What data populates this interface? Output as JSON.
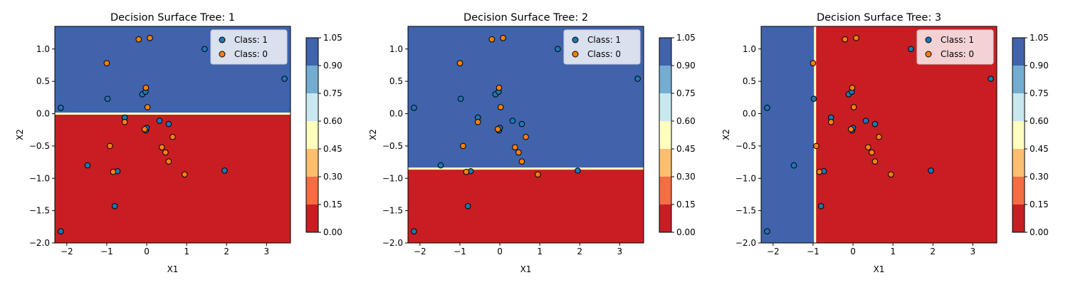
{
  "colors": {
    "class_1": "#1f77b4",
    "class_0": "#ff7f0e",
    "marker_edge": "#000000",
    "region_class_1": "#4063ab",
    "region_class_0": "#c81e23",
    "boundary": "#ffffbf"
  },
  "colorbar": {
    "levels": [
      0.0,
      0.15,
      0.3,
      0.45,
      0.6,
      0.75,
      0.9,
      1.05
    ],
    "tick_labels": [
      "0.00",
      "0.15",
      "0.30",
      "0.45",
      "0.60",
      "0.75",
      "0.90",
      "1.05"
    ],
    "colors": [
      "#c81e23",
      "#f46d43",
      "#fdbf6f",
      "#ffffbf",
      "#c9e7ef",
      "#74add1",
      "#4063ab"
    ]
  },
  "chart_data": [
    {
      "type": "scatter",
      "title": "Decision Surface Tree: 1",
      "xlabel": "X1",
      "ylabel": "X2",
      "xlim": [
        -2.3,
        3.6
      ],
      "ylim": [
        -2.0,
        1.35
      ],
      "xticks": [
        -2,
        -1,
        0,
        1,
        2,
        3
      ],
      "xtick_labels": [
        "−2",
        "−1",
        "0",
        "1",
        "2",
        "3"
      ],
      "yticks": [
        -2.0,
        -1.5,
        -1.0,
        -0.5,
        0.0,
        0.5,
        1.0
      ],
      "ytick_labels": [
        "−2.0",
        "−1.5",
        "−1.0",
        "−0.5",
        "0.0",
        "0.5",
        "1.0"
      ],
      "split": {
        "axis": "x2",
        "threshold": 0.0,
        "lower_class": 0,
        "upper_class": 1
      },
      "legend": "top-right",
      "series": [
        {
          "name": "Class: 1",
          "class": 1,
          "points": [
            [
              -2.15,
              0.09
            ],
            [
              -1.48,
              -0.8
            ],
            [
              -0.98,
              0.23
            ],
            [
              -0.8,
              -1.43
            ],
            [
              -0.73,
              -0.89
            ],
            [
              -0.55,
              -0.06
            ],
            [
              -0.11,
              0.3
            ],
            [
              -0.03,
              0.34
            ],
            [
              -0.02,
              -0.26
            ],
            [
              0.0,
              -0.22
            ],
            [
              0.32,
              -0.11
            ],
            [
              0.55,
              -0.16
            ],
            [
              1.45,
              1.0
            ],
            [
              1.95,
              -0.88
            ],
            [
              3.45,
              0.54
            ],
            [
              -2.15,
              -1.82
            ]
          ]
        },
        {
          "name": "Class: 0",
          "class": 0,
          "points": [
            [
              -1.0,
              0.78
            ],
            [
              -0.2,
              1.15
            ],
            [
              0.08,
              1.17
            ],
            [
              -0.92,
              -0.5
            ],
            [
              -0.84,
              -0.9
            ],
            [
              -0.55,
              -0.13
            ],
            [
              -0.05,
              -0.24
            ],
            [
              -0.02,
              0.4
            ],
            [
              0.02,
              0.1
            ],
            [
              0.38,
              -0.52
            ],
            [
              0.47,
              -0.6
            ],
            [
              0.55,
              -0.74
            ],
            [
              0.65,
              -0.36
            ],
            [
              0.95,
              -0.94
            ]
          ]
        }
      ]
    },
    {
      "type": "scatter",
      "title": "Decision Surface Tree: 2",
      "xlabel": "X1",
      "ylabel": "X2",
      "xlim": [
        -2.3,
        3.6
      ],
      "ylim": [
        -2.0,
        1.35
      ],
      "xticks": [
        -2,
        -1,
        0,
        1,
        2,
        3
      ],
      "xtick_labels": [
        "−2",
        "−1",
        "0",
        "1",
        "2",
        "3"
      ],
      "yticks": [
        -2.0,
        -1.5,
        -1.0,
        -0.5,
        0.0,
        0.5,
        1.0
      ],
      "ytick_labels": [
        "−2.0",
        "−1.5",
        "−1.0",
        "−0.5",
        "0.0",
        "0.5",
        "1.0"
      ],
      "split": {
        "axis": "x2",
        "threshold": -0.85,
        "lower_class": 0,
        "upper_class": 1
      },
      "legend": "top-right",
      "series": [
        {
          "name": "Class: 1",
          "class": 1,
          "points": [
            [
              -2.15,
              0.09
            ],
            [
              -1.48,
              -0.8
            ],
            [
              -0.98,
              0.23
            ],
            [
              -0.8,
              -1.43
            ],
            [
              -0.73,
              -0.89
            ],
            [
              -0.55,
              -0.06
            ],
            [
              -0.11,
              0.3
            ],
            [
              -0.03,
              0.34
            ],
            [
              -0.02,
              -0.26
            ],
            [
              0.0,
              -0.22
            ],
            [
              0.32,
              -0.11
            ],
            [
              0.55,
              -0.16
            ],
            [
              1.45,
              1.0
            ],
            [
              1.95,
              -0.88
            ],
            [
              3.45,
              0.54
            ],
            [
              -2.15,
              -1.82
            ]
          ]
        },
        {
          "name": "Class: 0",
          "class": 0,
          "points": [
            [
              -1.0,
              0.78
            ],
            [
              -0.2,
              1.15
            ],
            [
              0.08,
              1.17
            ],
            [
              -0.92,
              -0.5
            ],
            [
              -0.84,
              -0.9
            ],
            [
              -0.55,
              -0.13
            ],
            [
              -0.05,
              -0.24
            ],
            [
              -0.02,
              0.4
            ],
            [
              0.02,
              0.1
            ],
            [
              0.38,
              -0.52
            ],
            [
              0.47,
              -0.6
            ],
            [
              0.55,
              -0.74
            ],
            [
              0.65,
              -0.36
            ],
            [
              0.95,
              -0.94
            ]
          ]
        }
      ]
    },
    {
      "type": "scatter",
      "title": "Decision Surface Tree: 3",
      "xlabel": "X1",
      "ylabel": "X2",
      "xlim": [
        -2.3,
        3.6
      ],
      "ylim": [
        -2.0,
        1.35
      ],
      "xticks": [
        -2,
        -1,
        0,
        1,
        2,
        3
      ],
      "xtick_labels": [
        "−2",
        "−1",
        "0",
        "1",
        "2",
        "3"
      ],
      "yticks": [
        -2.0,
        -1.5,
        -1.0,
        -0.5,
        0.0,
        0.5,
        1.0
      ],
      "ytick_labels": [
        "−2.0",
        "−1.5",
        "−1.0",
        "−0.5",
        "0.0",
        "0.5",
        "1.0"
      ],
      "split": {
        "axis": "x1",
        "threshold": -0.95,
        "lower_class": 1,
        "upper_class": 0
      },
      "legend": "top-right",
      "series": [
        {
          "name": "Class: 1",
          "class": 1,
          "points": [
            [
              -2.15,
              0.09
            ],
            [
              -1.48,
              -0.8
            ],
            [
              -0.98,
              0.23
            ],
            [
              -0.8,
              -1.43
            ],
            [
              -0.73,
              -0.89
            ],
            [
              -0.55,
              -0.06
            ],
            [
              -0.11,
              0.3
            ],
            [
              -0.03,
              0.34
            ],
            [
              -0.02,
              -0.26
            ],
            [
              0.0,
              -0.22
            ],
            [
              0.32,
              -0.11
            ],
            [
              0.55,
              -0.16
            ],
            [
              1.45,
              1.0
            ],
            [
              1.95,
              -0.88
            ],
            [
              3.45,
              0.54
            ],
            [
              -2.15,
              -1.82
            ]
          ]
        },
        {
          "name": "Class: 0",
          "class": 0,
          "points": [
            [
              -1.0,
              0.78
            ],
            [
              -0.2,
              1.15
            ],
            [
              0.08,
              1.17
            ],
            [
              -0.92,
              -0.5
            ],
            [
              -0.84,
              -0.9
            ],
            [
              -0.55,
              -0.13
            ],
            [
              -0.05,
              -0.24
            ],
            [
              -0.02,
              0.4
            ],
            [
              0.02,
              0.1
            ],
            [
              0.38,
              -0.52
            ],
            [
              0.47,
              -0.6
            ],
            [
              0.55,
              -0.74
            ],
            [
              0.65,
              -0.36
            ],
            [
              0.95,
              -0.94
            ]
          ]
        }
      ]
    }
  ]
}
